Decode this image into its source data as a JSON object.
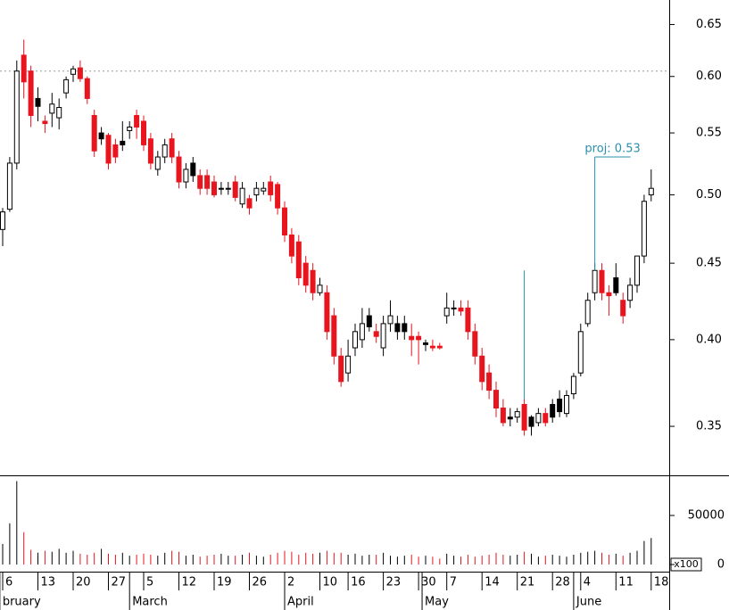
{
  "chart_data": {
    "type": "candlestick",
    "log_scale": true,
    "ylim": [
      0.325,
      0.675
    ],
    "yticks": [
      0.35,
      0.4,
      0.45,
      0.5,
      0.55,
      0.6,
      0.65
    ],
    "ytick_labels": [
      "0.35",
      "0.40",
      "0.45",
      "0.50",
      "0.55",
      "0.60",
      "0.65"
    ],
    "open": [
      0.474,
      0.489,
      0.525,
      0.62,
      0.605,
      0.58,
      0.56,
      0.567,
      0.563,
      0.585,
      0.602,
      0.608,
      0.598,
      0.565,
      0.55,
      0.548,
      0.54,
      0.543,
      0.552,
      0.565,
      0.56,
      0.545,
      0.52,
      0.53,
      0.545,
      0.53,
      0.51,
      0.525,
      0.515,
      0.515,
      0.51,
      0.505,
      0.505,
      0.51,
      0.493,
      0.497,
      0.5,
      0.503,
      0.51,
      0.508,
      0.49,
      0.47,
      0.465,
      0.45,
      0.445,
      0.43,
      0.43,
      0.415,
      0.39,
      0.38,
      0.395,
      0.4,
      0.415,
      0.405,
      0.395,
      0.41,
      0.41,
      0.41,
      0.402,
      0.402,
      0.398,
      0.396,
      0.396,
      0.415,
      0.42,
      0.42,
      0.42,
      0.405,
      0.39,
      0.38,
      0.37,
      0.36,
      0.355,
      0.355,
      0.362,
      0.355,
      0.352,
      0.357,
      0.362,
      0.365,
      0.357,
      0.368,
      0.38,
      0.41,
      0.43,
      0.445,
      0.43,
      0.44,
      0.425,
      0.425,
      0.435,
      0.455,
      0.5
    ],
    "high": [
      0.49,
      0.53,
      0.615,
      0.635,
      0.61,
      0.59,
      0.565,
      0.585,
      0.58,
      0.6,
      0.61,
      0.615,
      0.6,
      0.57,
      0.555,
      0.55,
      0.545,
      0.56,
      0.56,
      0.57,
      0.565,
      0.55,
      0.535,
      0.545,
      0.55,
      0.535,
      0.525,
      0.53,
      0.52,
      0.52,
      0.515,
      0.51,
      0.51,
      0.515,
      0.51,
      0.5,
      0.51,
      0.51,
      0.515,
      0.51,
      0.495,
      0.475,
      0.47,
      0.455,
      0.45,
      0.44,
      0.435,
      0.42,
      0.395,
      0.4,
      0.41,
      0.42,
      0.42,
      0.41,
      0.415,
      0.425,
      0.415,
      0.415,
      0.41,
      0.405,
      0.4,
      0.4,
      0.398,
      0.43,
      0.425,
      0.425,
      0.425,
      0.41,
      0.395,
      0.385,
      0.375,
      0.365,
      0.36,
      0.36,
      0.365,
      0.356,
      0.36,
      0.36,
      0.365,
      0.37,
      0.37,
      0.38,
      0.41,
      0.43,
      0.45,
      0.45,
      0.435,
      0.45,
      0.43,
      0.44,
      0.455,
      0.5,
      0.52
    ],
    "low": [
      0.462,
      0.487,
      0.52,
      0.58,
      0.555,
      0.56,
      0.55,
      0.555,
      0.553,
      0.58,
      0.595,
      0.595,
      0.575,
      0.53,
      0.54,
      0.52,
      0.525,
      0.535,
      0.545,
      0.545,
      0.535,
      0.52,
      0.515,
      0.525,
      0.525,
      0.505,
      0.505,
      0.51,
      0.5,
      0.5,
      0.498,
      0.5,
      0.5,
      0.495,
      0.49,
      0.485,
      0.495,
      0.5,
      0.495,
      0.485,
      0.465,
      0.45,
      0.435,
      0.43,
      0.425,
      0.428,
      0.4,
      0.385,
      0.372,
      0.375,
      0.39,
      0.395,
      0.405,
      0.398,
      0.39,
      0.405,
      0.4,
      0.4,
      0.39,
      0.385,
      0.393,
      0.393,
      0.394,
      0.41,
      0.415,
      0.415,
      0.4,
      0.385,
      0.37,
      0.365,
      0.355,
      0.35,
      0.35,
      0.352,
      0.345,
      0.345,
      0.35,
      0.35,
      0.352,
      0.355,
      0.355,
      0.365,
      0.378,
      0.408,
      0.425,
      0.425,
      0.415,
      0.428,
      0.41,
      0.42,
      0.43,
      0.45,
      0.495
    ],
    "close": [
      0.487,
      0.525,
      0.605,
      0.595,
      0.565,
      0.573,
      0.558,
      0.575,
      0.572,
      0.597,
      0.607,
      0.598,
      0.58,
      0.535,
      0.545,
      0.525,
      0.53,
      0.54,
      0.555,
      0.555,
      0.54,
      0.525,
      0.53,
      0.54,
      0.53,
      0.51,
      0.52,
      0.515,
      0.505,
      0.505,
      0.5,
      0.505,
      0.505,
      0.498,
      0.505,
      0.49,
      0.505,
      0.505,
      0.5,
      0.49,
      0.47,
      0.455,
      0.44,
      0.435,
      0.43,
      0.435,
      0.405,
      0.39,
      0.375,
      0.39,
      0.405,
      0.41,
      0.408,
      0.402,
      0.41,
      0.415,
      0.405,
      0.405,
      0.4,
      0.4,
      0.397,
      0.395,
      0.395,
      0.42,
      0.42,
      0.418,
      0.405,
      0.39,
      0.375,
      0.37,
      0.36,
      0.352,
      0.354,
      0.358,
      0.348,
      0.35,
      0.357,
      0.352,
      0.355,
      0.358,
      0.367,
      0.378,
      0.405,
      0.425,
      0.445,
      0.43,
      0.428,
      0.43,
      0.415,
      0.435,
      0.455,
      0.495,
      0.505
    ],
    "colors": [
      "#ffffff",
      "#ffffff",
      "#ffffff",
      "#e8141e",
      "#e8141e",
      "#000000",
      "#e8141e",
      "#ffffff",
      "#ffffff",
      "#ffffff",
      "#ffffff",
      "#e8141e",
      "#e8141e",
      "#e8141e",
      "#000000",
      "#e8141e",
      "#e8141e",
      "#000000",
      "#ffffff",
      "#e8141e",
      "#e8141e",
      "#e8141e",
      "#ffffff",
      "#ffffff",
      "#e8141e",
      "#e8141e",
      "#ffffff",
      "#000000",
      "#e8141e",
      "#e8141e",
      "#e8141e",
      "#ffffff",
      "#000000",
      "#e8141e",
      "#ffffff",
      "#e8141e",
      "#ffffff",
      "#ffffff",
      "#e8141e",
      "#e8141e",
      "#e8141e",
      "#e8141e",
      "#e8141e",
      "#e8141e",
      "#e8141e",
      "#ffffff",
      "#e8141e",
      "#e8141e",
      "#e8141e",
      "#ffffff",
      "#ffffff",
      "#ffffff",
      "#000000",
      "#e8141e",
      "#ffffff",
      "#ffffff",
      "#000000",
      "#000000",
      "#e8141e",
      "#e8141e",
      "#000000",
      "#e8141e",
      "#e8141e",
      "#ffffff",
      "#ffffff",
      "#e8141e",
      "#e8141e",
      "#e8141e",
      "#e8141e",
      "#e8141e",
      "#e8141e",
      "#e8141e",
      "#000000",
      "#ffffff",
      "#e8141e",
      "#000000",
      "#ffffff",
      "#e8141e",
      "#000000",
      "#000000",
      "#ffffff",
      "#ffffff",
      "#ffffff",
      "#ffffff",
      "#ffffff",
      "#e8141e",
      "#e8141e",
      "#000000",
      "#e8141e",
      "#ffffff",
      "#ffffff",
      "#ffffff",
      "#ffffff"
    ],
    "volume": [
      21000,
      42000,
      85000,
      33000,
      15000,
      12000,
      14000,
      13000,
      16000,
      12000,
      14000,
      11000,
      10000,
      12000,
      16000,
      11000,
      10000,
      12000,
      9000,
      10000,
      11000,
      10000,
      9000,
      12000,
      14000,
      13000,
      9000,
      10000,
      8000,
      9000,
      10000,
      11000,
      9000,
      9000,
      10000,
      12000,
      9000,
      8000,
      10000,
      12000,
      14000,
      13000,
      10000,
      12000,
      11000,
      12000,
      14000,
      12000,
      12000,
      10000,
      11000,
      9000,
      10000,
      10000,
      12000,
      9000,
      8000,
      9000,
      10000,
      8000,
      9000,
      8000,
      6000,
      11000,
      9000,
      8000,
      10000,
      8000,
      9000,
      10000,
      12000,
      10000,
      9000,
      10000,
      13000,
      11000,
      8000,
      9000,
      10000,
      9000,
      8000,
      10000,
      12000,
      13000,
      14000,
      12000,
      10000,
      11000,
      9000,
      12000,
      14000,
      24000,
      27000
    ],
    "volume_ylim": [
      0,
      90000
    ],
    "volume_yticks": [
      0,
      50000
    ],
    "volume_unit": "x100",
    "resistance": 0.605,
    "projection": {
      "label": "proj: 0.53",
      "value": 0.53,
      "legs": [
        {
          "x": 74,
          "from": 0.365,
          "to": 0.445
        },
        {
          "x": 84,
          "from": 0.445,
          "to": 0.53
        }
      ]
    },
    "xticks": [
      {
        "value": 0,
        "label": "6"
      },
      {
        "value": 5,
        "label": "13"
      },
      {
        "value": 10,
        "label": "20"
      },
      {
        "value": 15,
        "label": "27"
      },
      {
        "value": 20,
        "label": "5"
      },
      {
        "value": 25,
        "label": "12"
      },
      {
        "value": 30,
        "label": "19"
      },
      {
        "value": 35,
        "label": "26"
      },
      {
        "value": 40,
        "label": "2"
      },
      {
        "value": 45,
        "label": "10"
      },
      {
        "value": 49,
        "label": "16"
      },
      {
        "value": 54,
        "label": "23"
      },
      {
        "value": 59,
        "label": "30"
      },
      {
        "value": 63,
        "label": "7"
      },
      {
        "value": 68,
        "label": "14"
      },
      {
        "value": 73,
        "label": "21"
      },
      {
        "value": 78,
        "label": "28"
      },
      {
        "value": 82,
        "label": "4"
      },
      {
        "value": 87,
        "label": "11"
      },
      {
        "value": 92,
        "label": "18"
      }
    ],
    "months": [
      {
        "value": -0.4,
        "label": "bruary"
      },
      {
        "value": 18,
        "label": "March"
      },
      {
        "value": 40,
        "label": "April"
      },
      {
        "value": 59.5,
        "label": "May"
      },
      {
        "value": 81,
        "label": "June"
      }
    ]
  }
}
